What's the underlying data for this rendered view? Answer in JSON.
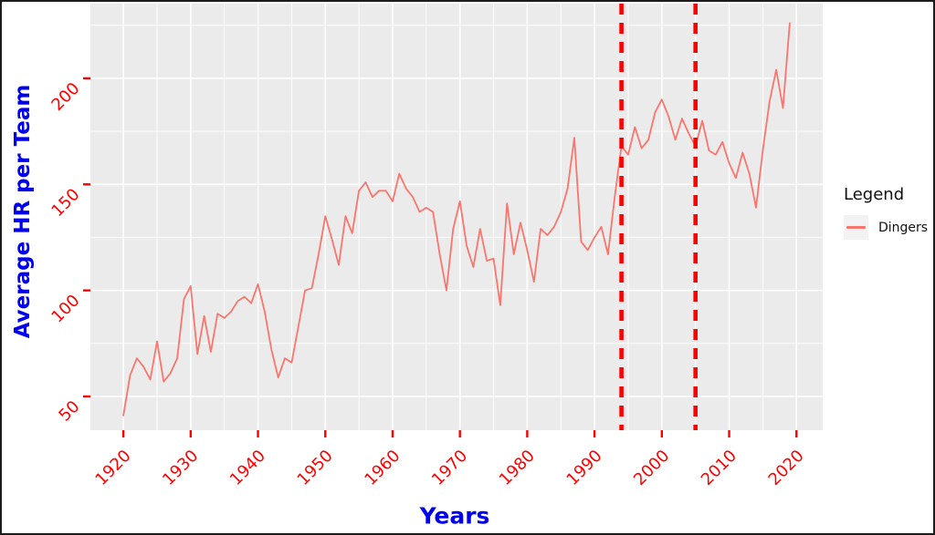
{
  "figure": {
    "kind": "ggplot-style line chart",
    "panel_background": "#EBEBEB",
    "grid_color": "#FFFFFF",
    "outer_border_color": "#1C1C1C"
  },
  "axes": {
    "x_title": "Years",
    "y_title": "Average HR per Team",
    "title_color": "#0000EE",
    "tick_color": "#FF0000"
  },
  "legend": {
    "title": "Legend",
    "series_label": "Dingers",
    "key_background": "#F2F2F2"
  },
  "chart_data": {
    "type": "line",
    "title": "",
    "xlabel": "Years",
    "ylabel": "Average HR per Team",
    "x_ticks": [
      1920,
      1930,
      1940,
      1950,
      1960,
      1970,
      1980,
      1990,
      2000,
      2010,
      2020
    ],
    "y_ticks": [
      50,
      100,
      150,
      200
    ],
    "x_minor_ticks": [
      1925,
      1935,
      1945,
      1955,
      1965,
      1975,
      1985,
      1995,
      2005,
      2015
    ],
    "y_minor_ticks": [
      75,
      125,
      175,
      225
    ],
    "xlim": [
      1915.1,
      2023.9
    ],
    "ylim": [
      34.1,
      235.2
    ],
    "grid": "white major+minor gridlines on gray panel",
    "legend_position": "right",
    "reference_lines": {
      "orientation": "vertical",
      "style": "dashed",
      "color": "#FF0000",
      "x": [
        1994,
        2005
      ]
    },
    "series": [
      {
        "name": "Dingers",
        "color": "#F8766D",
        "x": [
          1920,
          1921,
          1922,
          1923,
          1924,
          1925,
          1926,
          1927,
          1928,
          1929,
          1930,
          1931,
          1932,
          1933,
          1934,
          1935,
          1936,
          1937,
          1938,
          1939,
          1940,
          1941,
          1942,
          1943,
          1944,
          1945,
          1946,
          1947,
          1948,
          1949,
          1950,
          1951,
          1952,
          1953,
          1954,
          1955,
          1956,
          1957,
          1958,
          1959,
          1960,
          1961,
          1962,
          1963,
          1964,
          1965,
          1966,
          1967,
          1968,
          1969,
          1970,
          1971,
          1972,
          1973,
          1974,
          1975,
          1976,
          1977,
          1978,
          1979,
          1980,
          1981,
          1982,
          1983,
          1984,
          1985,
          1986,
          1987,
          1988,
          1989,
          1990,
          1991,
          1992,
          1993,
          1994,
          1995,
          1996,
          1997,
          1998,
          1999,
          2000,
          2001,
          2002,
          2003,
          2004,
          2005,
          2006,
          2007,
          2008,
          2009,
          2010,
          2011,
          2012,
          2013,
          2014,
          2015,
          2016,
          2017,
          2018,
          2019
        ],
        "values": [
          41,
          60,
          68,
          64,
          58,
          76,
          57,
          61,
          68,
          96,
          102,
          70,
          88,
          71,
          89,
          87,
          90,
          95,
          97,
          94,
          103,
          90,
          72,
          59,
          68,
          66,
          83,
          100,
          101,
          117,
          135,
          124,
          112,
          135,
          127,
          147,
          151,
          144,
          147,
          147,
          142,
          155,
          148,
          144,
          137,
          139,
          137,
          117,
          100,
          129,
          142,
          121,
          111,
          129,
          114,
          115,
          93,
          141,
          117,
          132,
          119,
          104,
          129,
          126,
          130,
          137,
          148,
          172,
          123,
          119,
          125,
          130,
          117,
          144,
          168,
          164,
          177,
          167,
          171,
          184,
          190,
          182,
          171,
          181,
          174,
          168,
          180,
          166,
          164,
          170,
          160,
          153,
          165,
          155,
          139,
          166,
          189,
          204,
          186,
          226
        ]
      }
    ]
  }
}
